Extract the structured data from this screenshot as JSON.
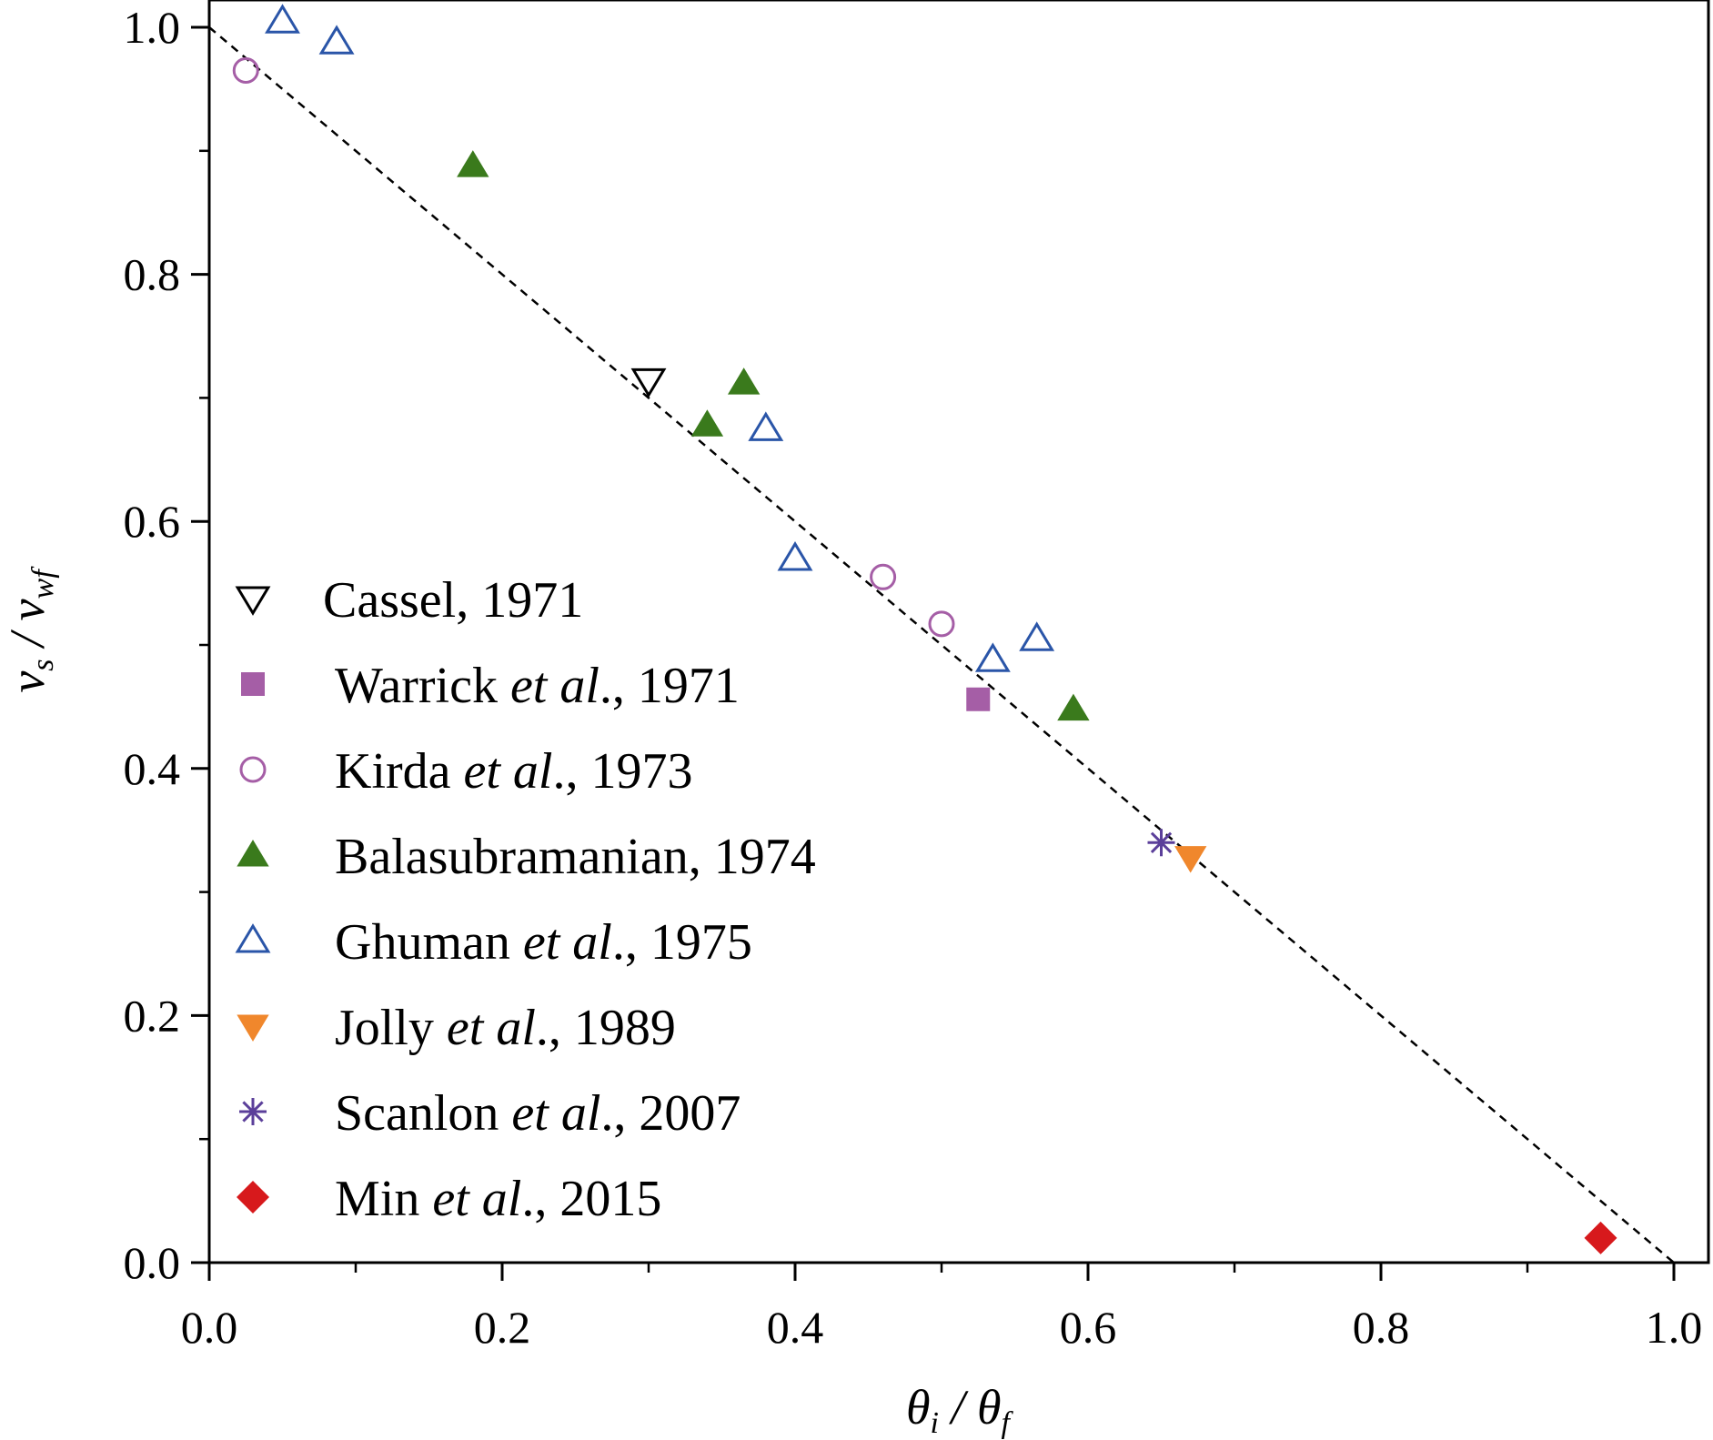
{
  "chart_data": {
    "type": "scatter",
    "xlabel": "θi / θf",
    "ylabel": "vs / vwf",
    "xlim": [
      0,
      1
    ],
    "ylim": [
      0,
      1
    ],
    "x_ticks": [
      "0.0",
      "0.2",
      "0.4",
      "0.6",
      "0.8",
      "1.0"
    ],
    "y_ticks": [
      "0.0",
      "0.2",
      "0.4",
      "0.6",
      "0.8",
      "1.0"
    ],
    "grid": false,
    "legend_position": "left-center",
    "reference_line": {
      "style": "dashed",
      "color": "#000000",
      "points": [
        [
          0,
          1
        ],
        [
          1,
          0
        ]
      ]
    },
    "series": [
      {
        "name": "Cassel, 1971",
        "marker": "triangle-down-open",
        "color": "#000000",
        "points": [
          [
            0.3,
            0.714
          ]
        ]
      },
      {
        "name": "Warrick et al., 1971",
        "marker": "square-filled",
        "color": "#a55ea6",
        "points": [
          [
            0.525,
            0.456
          ]
        ]
      },
      {
        "name": "Kirda et al., 1973",
        "marker": "circle-open",
        "color": "#a55ea6",
        "points": [
          [
            0.025,
            0.965
          ],
          [
            0.46,
            0.555
          ],
          [
            0.5,
            0.517
          ]
        ]
      },
      {
        "name": "Balasubramanian, 1974",
        "marker": "triangle-up-filled",
        "color": "#3a7a1c",
        "points": [
          [
            0.18,
            0.888
          ],
          [
            0.34,
            0.678
          ],
          [
            0.365,
            0.712
          ],
          [
            0.59,
            0.448
          ]
        ]
      },
      {
        "name": "Ghuman et al., 1975",
        "marker": "triangle-up-open",
        "color": "#2a55a8",
        "points": [
          [
            0.05,
            1.005
          ],
          [
            0.087,
            0.988
          ],
          [
            0.38,
            0.675
          ],
          [
            0.4,
            0.57
          ],
          [
            0.535,
            0.488
          ],
          [
            0.565,
            0.505
          ]
        ]
      },
      {
        "name": "Jolly et al., 1989",
        "marker": "triangle-down-filled",
        "color": "#f0872c",
        "points": [
          [
            0.67,
            0.328
          ]
        ]
      },
      {
        "name": "Scanlon et al., 2007",
        "marker": "asterisk",
        "color": "#5b3f9a",
        "points": [
          [
            0.65,
            0.34
          ]
        ]
      },
      {
        "name": "Min et al., 2015",
        "marker": "diamond-filled",
        "color": "#d7191c",
        "points": [
          [
            0.95,
            0.02
          ]
        ]
      }
    ]
  }
}
